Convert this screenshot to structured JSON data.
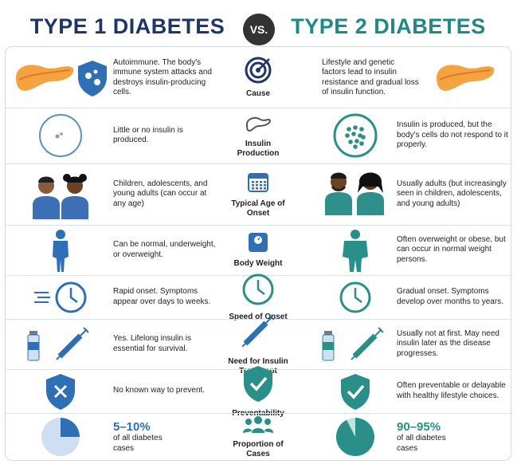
{
  "header": {
    "left_title": "TYPE 1 DIABETES",
    "vs": "VS.",
    "right_title": "TYPE 2 DIABETES"
  },
  "rows": [
    {
      "label": "Cause",
      "type1": "Autoimmune. The body's immune system attacks and destroys insulin-producing cells.",
      "type2": "Lifestyle and genetic factors lead to insulin resistance and gradual loss of insulin function."
    },
    {
      "label": "Insulin Production",
      "type1": "Little or no insulin is produced.",
      "type2": "Insulin is produced, but the body's cells do not respond to it properly."
    },
    {
      "label": "Typical Age of Onset",
      "type1": "Children, adolescents, and young adults (can occur at any age)",
      "type2": "Usually adults (but increasingly seen in children, adolescents, and young adults)"
    },
    {
      "label": "Body Weight",
      "type1": "Can be normal, underweight, or overweight.",
      "type2": "Often overweight or obese, but can occur in normal weight persons."
    },
    {
      "label": "Speed of Onset",
      "type1": "Rapid onset. Symptoms appear over days to weeks.",
      "type2": "Gradual onset. Symptoms develop over months to years."
    },
    {
      "label": "Need for Insulin Treatment",
      "type1": "Yes. Lifelong insulin is essential for survival.",
      "type2": "Usually not at first. May need insulin later as the disease progresses."
    },
    {
      "label": "Preventability",
      "type1": "No known way to prevent.",
      "type2": "Often preventable or delayable with healthy lifestyle choices."
    },
    {
      "label": "Proportion of Cases",
      "type1": {
        "highlight": "5–10%",
        "text": "of all diabetes cases"
      },
      "type2": {
        "highlight": "90–95%",
        "text": "of all diabetes cases"
      }
    }
  ]
}
